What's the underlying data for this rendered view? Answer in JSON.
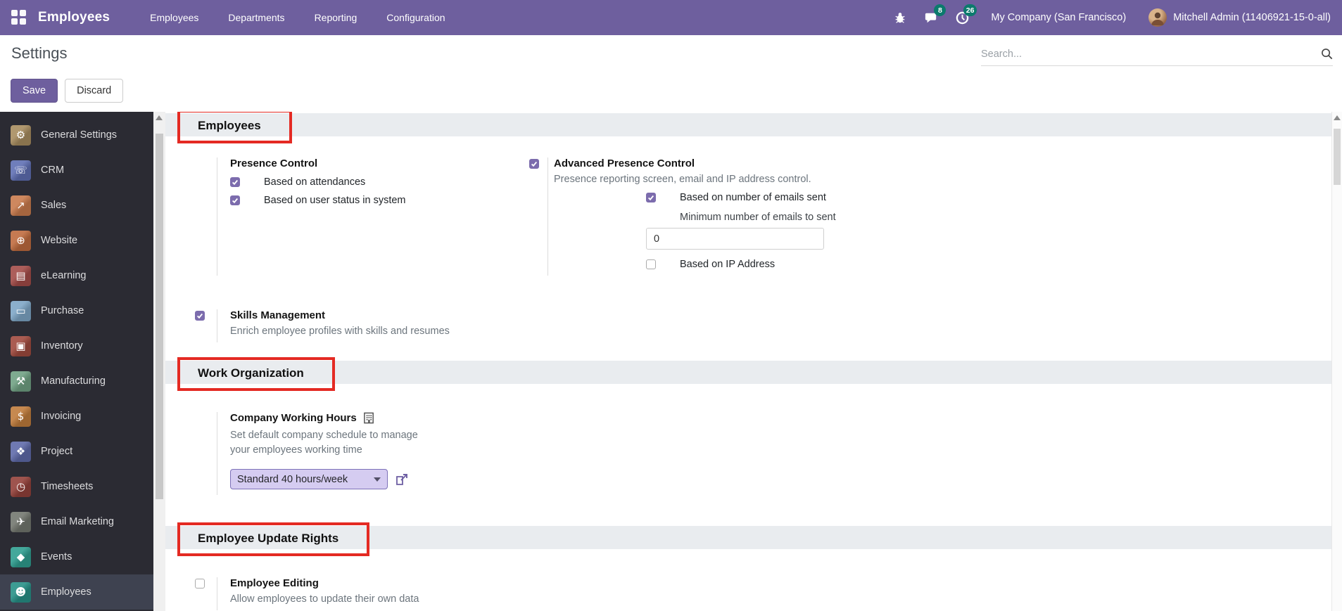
{
  "colors": {
    "accent": "#6e5f9e",
    "annotation_red": "#e42a23",
    "badge_teal": "#0c7a6d",
    "checkbox_purple": "#7c6cad",
    "section_band": "#e9ecef"
  },
  "nav": {
    "app_name": "Employees",
    "menus": [
      "Employees",
      "Departments",
      "Reporting",
      "Configuration"
    ],
    "message_badge": "8",
    "activity_badge": "26",
    "company": "My Company (San Francisco)",
    "user": "Mitchell Admin (11406921-15-0-all)"
  },
  "control_panel": {
    "title": "Settings",
    "save_label": "Save",
    "discard_label": "Discard",
    "search_placeholder": "Search..."
  },
  "sidebar": {
    "items": [
      {
        "label": "General Settings",
        "icon": "gear",
        "color": "#a78c5f",
        "selected": false
      },
      {
        "label": "CRM",
        "icon": "handshake",
        "color": "#5f6fb3",
        "selected": false
      },
      {
        "label": "Sales",
        "icon": "chart",
        "color": "#c97b4d",
        "selected": false
      },
      {
        "label": "Website",
        "icon": "globe",
        "color": "#bf6b3e",
        "selected": false
      },
      {
        "label": "eLearning",
        "icon": "presentation",
        "color": "#a34c48",
        "selected": false
      },
      {
        "label": "Purchase",
        "icon": "credit-card",
        "color": "#7ea6c6",
        "selected": false
      },
      {
        "label": "Inventory",
        "icon": "box",
        "color": "#a04a3e",
        "selected": false
      },
      {
        "label": "Manufacturing",
        "icon": "wrench",
        "color": "#70a183",
        "selected": false
      },
      {
        "label": "Invoicing",
        "icon": "invoice",
        "color": "#c07c3c",
        "selected": false
      },
      {
        "label": "Project",
        "icon": "puzzle",
        "color": "#5f6aa9",
        "selected": false
      },
      {
        "label": "Timesheets",
        "icon": "stopwatch",
        "color": "#93413a",
        "selected": false
      },
      {
        "label": "Email Marketing",
        "icon": "paper-plane",
        "color": "#73776f",
        "selected": false
      },
      {
        "label": "Events",
        "icon": "ticket",
        "color": "#2f9e90",
        "selected": false
      },
      {
        "label": "Employees",
        "icon": "people",
        "color": "#279187",
        "selected": true
      }
    ]
  },
  "main": {
    "employees": {
      "title": "Employees",
      "presence_control": {
        "title": "Presence Control",
        "option1": {
          "label": "Based on attendances",
          "checked": true
        },
        "option2": {
          "label": "Based on user status in system",
          "checked": true
        }
      },
      "advanced_presence": {
        "checked": true,
        "title": "Advanced Presence Control",
        "description": "Presence reporting screen, email and IP address control.",
        "based_on_emails": {
          "label": "Based on number of emails sent",
          "checked": true
        },
        "min_emails_label": "Minimum number of emails to sent",
        "min_emails_value": "0",
        "based_on_ip": {
          "label": "Based on IP Address",
          "checked": false
        }
      },
      "skills": {
        "checked": true,
        "title": "Skills Management",
        "description": "Enrich employee profiles with skills and resumes"
      }
    },
    "work_organization": {
      "title": "Work Organization",
      "working_hours": {
        "title": "Company Working Hours",
        "description_line1": "Set default company schedule to manage",
        "description_line2": "your employees working time",
        "value": "Standard 40 hours/week"
      }
    },
    "employee_update_rights": {
      "title": "Employee Update Rights",
      "employee_editing": {
        "checked": false,
        "title": "Employee Editing",
        "description": "Allow employees to update their own data"
      }
    }
  }
}
